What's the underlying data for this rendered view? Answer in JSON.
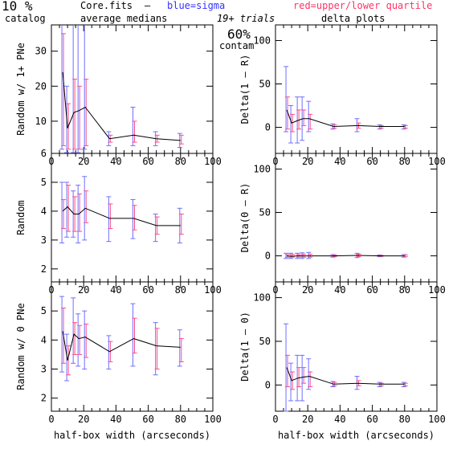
{
  "header": {
    "pct": "10 %",
    "catalog": "catalog",
    "file": "Core.fits",
    "dash": "–",
    "avg": "average medians",
    "blue": "blue=sigma",
    "red": "red=upper/lower quartile",
    "trials": "19+ trials",
    "contam_pct": "60%",
    "contam": "contam",
    "delta": "delta plots"
  },
  "colors": {
    "line": "#000000",
    "sigma": "#6f6fff",
    "quartile": "#ff4d88"
  },
  "chart_data": [
    {
      "id": "p1",
      "type": "line",
      "ylabel": "Random w/ 1+ PNe",
      "xlabel": "",
      "xlim": [
        0,
        100
      ],
      "ylim": [
        0.8,
        37.5
      ],
      "xticks": [
        0,
        20,
        40,
        60,
        80,
        100
      ],
      "yticks": [
        10,
        20,
        30
      ],
      "series": [
        {
          "x": [
            7,
            10,
            14,
            17,
            21,
            36,
            51,
            65,
            80
          ],
          "values": [
            24,
            8,
            12.5,
            13,
            14,
            5,
            6,
            5,
            4.5
          ],
          "sigma_lo": [
            2,
            1,
            1,
            1,
            2,
            3,
            3,
            3,
            2.5
          ],
          "sigma_hi": [
            40,
            20,
            40,
            40,
            40,
            7,
            14,
            7,
            6.5
          ],
          "quart_lo": [
            3,
            2,
            2,
            2,
            3,
            4,
            4,
            4,
            3.5
          ],
          "quart_hi": [
            35,
            15,
            22,
            20,
            22,
            6,
            10,
            6,
            6
          ]
        }
      ]
    },
    {
      "id": "p2",
      "type": "line",
      "ylabel": "Random",
      "xlabel": "",
      "xlim": [
        0,
        100
      ],
      "ylim": [
        1.55,
        6
      ],
      "xticks": [
        0,
        20,
        40,
        60,
        80,
        100
      ],
      "yticks": [
        2,
        3,
        4,
        5,
        6
      ],
      "series": [
        {
          "x": [
            7,
            10,
            14,
            17,
            21,
            36,
            51,
            65,
            80
          ],
          "values": [
            4.0,
            4.15,
            3.9,
            3.9,
            4.1,
            3.75,
            3.75,
            3.5,
            3.5
          ],
          "sigma_lo": [
            2.9,
            3.1,
            3.1,
            2.9,
            3.0,
            2.95,
            3.05,
            2.95,
            2.9
          ],
          "sigma_hi": [
            5.0,
            5.0,
            4.7,
            4.9,
            5.2,
            4.5,
            4.4,
            3.9,
            4.1
          ],
          "quart_lo": [
            3.4,
            3.3,
            3.3,
            3.3,
            3.6,
            3.4,
            3.35,
            3.2,
            3.2
          ],
          "quart_hi": [
            4.4,
            4.9,
            4.5,
            4.6,
            4.7,
            4.25,
            4.2,
            3.8,
            3.9
          ]
        }
      ]
    },
    {
      "id": "p3",
      "type": "line",
      "ylabel": "Random w/ 0 PNe",
      "xlabel": "half-box width (arcseconds)",
      "xlim": [
        0,
        100
      ],
      "ylim": [
        1.55,
        6
      ],
      "xticks": [
        0,
        20,
        40,
        60,
        80,
        100
      ],
      "yticks": [
        2,
        3,
        4,
        5
      ],
      "series": [
        {
          "x": [
            7,
            10,
            14,
            17,
            21,
            36,
            51,
            65,
            80
          ],
          "values": [
            4.3,
            3.3,
            4.2,
            4.05,
            4.1,
            3.6,
            4.05,
            3.8,
            3.75
          ],
          "sigma_lo": [
            2.9,
            2.6,
            3.2,
            3.1,
            3.0,
            3.0,
            3.1,
            2.8,
            3.1
          ],
          "sigma_hi": [
            5.5,
            4.2,
            5.45,
            4.9,
            5.0,
            4.15,
            5.25,
            4.6,
            4.35
          ],
          "quart_lo": [
            3.2,
            2.8,
            3.5,
            3.5,
            3.4,
            3.25,
            3.55,
            3.0,
            3.25
          ],
          "quart_hi": [
            5.1,
            3.8,
            4.6,
            4.5,
            4.55,
            3.95,
            4.75,
            4.4,
            4.05
          ]
        }
      ]
    },
    {
      "id": "p4",
      "type": "line",
      "ylabel": "Delta(1 – R)",
      "xlabel": "",
      "xlim": [
        0,
        100
      ],
      "ylim": [
        -30,
        118
      ],
      "xticks": [
        0,
        20,
        40,
        60,
        80,
        100
      ],
      "yticks": [
        0,
        50,
        100
      ],
      "series": [
        {
          "x": [
            7,
            10,
            14,
            17,
            21,
            36,
            51,
            65,
            80
          ],
          "values": [
            20,
            5,
            8,
            10,
            10,
            1,
            2,
            1,
            1
          ],
          "sigma_lo": [
            -5,
            -18,
            -18,
            -15,
            -5,
            -2,
            -5,
            -2,
            -2
          ],
          "sigma_hi": [
            70,
            25,
            35,
            35,
            30,
            4,
            10,
            3,
            3
          ],
          "quart_lo": [
            -2,
            -5,
            -2,
            2,
            -2,
            -1,
            -1,
            -1,
            -1
          ],
          "quart_hi": [
            35,
            15,
            20,
            20,
            15,
            3,
            5,
            2,
            2
          ]
        }
      ]
    },
    {
      "id": "p5",
      "type": "line",
      "ylabel": "Delta(0 – R)",
      "xlabel": "",
      "xlim": [
        0,
        100
      ],
      "ylim": [
        -30,
        118
      ],
      "xticks": [
        0,
        20,
        40,
        60,
        80,
        100
      ],
      "yticks": [
        0,
        50,
        100
      ],
      "series": [
        {
          "x": [
            7,
            10,
            14,
            17,
            21,
            36,
            51,
            65,
            80
          ],
          "values": [
            0,
            -0.5,
            0,
            0,
            0,
            0,
            0.5,
            0,
            0
          ],
          "sigma_lo": [
            -3,
            -3,
            -3,
            -3,
            -3,
            -1.5,
            -2,
            -1,
            -1.5
          ],
          "sigma_hi": [
            3,
            3,
            3,
            3.5,
            4,
            1.5,
            3,
            1,
            1.5
          ],
          "quart_lo": [
            -1.5,
            -1.5,
            -1.5,
            -1.5,
            -1.5,
            -1,
            -1,
            -0.5,
            -1
          ],
          "quart_hi": [
            1.5,
            1.5,
            1.5,
            2,
            2,
            1,
            2,
            0.5,
            1
          ]
        }
      ]
    },
    {
      "id": "p6",
      "type": "line",
      "ylabel": "Delta(1 – 0)",
      "xlabel": "half-box width (arcseconds)",
      "xlim": [
        0,
        100
      ],
      "ylim": [
        -30,
        118
      ],
      "xticks": [
        0,
        20,
        40,
        60,
        80,
        100
      ],
      "yticks": [
        0,
        50,
        100
      ],
      "series": [
        {
          "x": [
            7,
            10,
            14,
            17,
            21,
            36,
            51,
            65,
            80
          ],
          "values": [
            20,
            5,
            8,
            9,
            10,
            1,
            2,
            1,
            1
          ],
          "sigma_lo": [
            -30,
            -18,
            -18,
            -18,
            -5,
            -2,
            -5,
            -2,
            -2
          ],
          "sigma_hi": [
            70,
            25,
            34,
            34,
            30,
            4,
            10,
            3,
            3
          ],
          "quart_lo": [
            -2,
            -5,
            -2,
            2,
            -2,
            -1,
            -1,
            -1,
            -1
          ],
          "quart_hi": [
            34,
            15,
            20,
            20,
            15,
            3,
            5,
            2,
            2
          ]
        }
      ]
    }
  ]
}
